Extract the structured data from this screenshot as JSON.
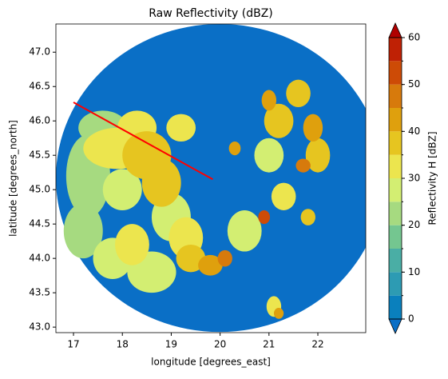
{
  "chart_data": {
    "type": "radar-image",
    "title": "Raw Reflectivity (dBZ)",
    "x_label": "longitude [degrees_east]",
    "y_label": "latitude [degrees_north]",
    "xlim": [
      16.64,
      22.98
    ],
    "ylim": [
      42.92,
      47.41
    ],
    "xticks": [
      17,
      18,
      19,
      20,
      21,
      22
    ],
    "yticks": [
      {
        "value": 43,
        "label": "43.0"
      },
      {
        "value": 43.5,
        "label": "43.5"
      },
      {
        "value": 44,
        "label": "44.0"
      },
      {
        "value": 44.5,
        "label": "44.5"
      },
      {
        "value": 45,
        "label": "45.0"
      },
      {
        "value": 45.5,
        "label": "45.5"
      },
      {
        "value": 46,
        "label": "46.0"
      },
      {
        "value": 46.5,
        "label": "46.5"
      },
      {
        "value": 47,
        "label": "47.0"
      }
    ],
    "colorbar": {
      "label": "Reflectivity H [dBZ]",
      "levels": [
        0,
        5,
        10,
        15,
        20,
        25,
        30,
        35,
        40,
        45,
        50,
        55,
        60
      ],
      "colors": [
        "#0a80bd",
        "#2d9bb3",
        "#4aaea5",
        "#74c690",
        "#a6da80",
        "#d3ee72",
        "#ece54e",
        "#e6c520",
        "#dfa00d",
        "#d77a0c",
        "#cd4b06",
        "#bf2105"
      ],
      "under_color": "#0a6fc6",
      "over_color": "#b00000",
      "ticks": [
        0,
        10,
        20,
        30,
        40,
        50,
        60
      ]
    },
    "sweep": {
      "center": [
        19.99,
        45.17
      ],
      "radius": [
        3.35,
        2.24
      ],
      "value": -5
    },
    "echoes": [
      {
        "lon": 17.3,
        "lat": 45.2,
        "rx": 0.45,
        "ry": 0.6,
        "value": 22
      },
      {
        "lon": 17.2,
        "lat": 44.4,
        "rx": 0.4,
        "ry": 0.4,
        "value": 22
      },
      {
        "lon": 17.6,
        "lat": 45.9,
        "rx": 0.5,
        "ry": 0.25,
        "value": 22
      },
      {
        "lon": 18.6,
        "lat": 43.8,
        "rx": 0.5,
        "ry": 0.3,
        "value": 25
      },
      {
        "lon": 17.8,
        "lat": 44.0,
        "rx": 0.4,
        "ry": 0.3,
        "value": 25
      },
      {
        "lon": 18.0,
        "lat": 45.0,
        "rx": 0.4,
        "ry": 0.3,
        "value": 25
      },
      {
        "lon": 20.5,
        "lat": 44.4,
        "rx": 0.35,
        "ry": 0.3,
        "value": 28
      },
      {
        "lon": 21.0,
        "lat": 45.5,
        "rx": 0.3,
        "ry": 0.25,
        "value": 25
      },
      {
        "lon": 19.0,
        "lat": 44.6,
        "rx": 0.4,
        "ry": 0.35,
        "value": 28
      },
      {
        "lon": 17.9,
        "lat": 45.6,
        "rx": 0.7,
        "ry": 0.3,
        "value": 30
      },
      {
        "lon": 18.3,
        "lat": 45.9,
        "rx": 0.4,
        "ry": 0.25,
        "value": 30
      },
      {
        "lon": 19.2,
        "lat": 45.9,
        "rx": 0.3,
        "ry": 0.2,
        "value": 30
      },
      {
        "lon": 21.3,
        "lat": 44.9,
        "rx": 0.25,
        "ry": 0.2,
        "value": 30
      },
      {
        "lon": 21.1,
        "lat": 43.3,
        "rx": 0.15,
        "ry": 0.15,
        "value": 30
      },
      {
        "lon": 18.2,
        "lat": 44.2,
        "rx": 0.35,
        "ry": 0.3,
        "value": 32
      },
      {
        "lon": 19.3,
        "lat": 44.3,
        "rx": 0.35,
        "ry": 0.3,
        "value": 32
      },
      {
        "lon": 18.8,
        "lat": 45.1,
        "rx": 0.4,
        "ry": 0.35,
        "value": 35
      },
      {
        "lon": 21.2,
        "lat": 46.0,
        "rx": 0.3,
        "ry": 0.25,
        "value": 35
      },
      {
        "lon": 22.0,
        "lat": 45.5,
        "rx": 0.25,
        "ry": 0.25,
        "value": 35
      },
      {
        "lon": 21.8,
        "lat": 44.6,
        "rx": 0.15,
        "ry": 0.12,
        "value": 35
      },
      {
        "lon": 18.5,
        "lat": 45.5,
        "rx": 0.5,
        "ry": 0.35,
        "value": 38
      },
      {
        "lon": 19.4,
        "lat": 44.0,
        "rx": 0.3,
        "ry": 0.2,
        "value": 38
      },
      {
        "lon": 21.6,
        "lat": 46.4,
        "rx": 0.25,
        "ry": 0.2,
        "value": 38
      },
      {
        "lon": 19.8,
        "lat": 43.9,
        "rx": 0.25,
        "ry": 0.15,
        "value": 40
      },
      {
        "lon": 20.3,
        "lat": 45.6,
        "rx": 0.12,
        "ry": 0.1,
        "value": 40
      },
      {
        "lon": 21.0,
        "lat": 46.3,
        "rx": 0.15,
        "ry": 0.15,
        "value": 40
      },
      {
        "lon": 21.9,
        "lat": 45.9,
        "rx": 0.2,
        "ry": 0.2,
        "value": 40
      },
      {
        "lon": 21.2,
        "lat": 43.2,
        "rx": 0.1,
        "ry": 0.08,
        "value": 40
      },
      {
        "lon": 20.1,
        "lat": 44.0,
        "rx": 0.15,
        "ry": 0.12,
        "value": 45
      },
      {
        "lon": 21.7,
        "lat": 45.35,
        "rx": 0.15,
        "ry": 0.1,
        "value": 45
      },
      {
        "lon": 20.9,
        "lat": 44.6,
        "rx": 0.12,
        "ry": 0.1,
        "value": 50
      }
    ],
    "line": {
      "lon": [
        17.0,
        19.85
      ],
      "lat": [
        46.27,
        45.15
      ],
      "color": "#ff0000"
    }
  }
}
